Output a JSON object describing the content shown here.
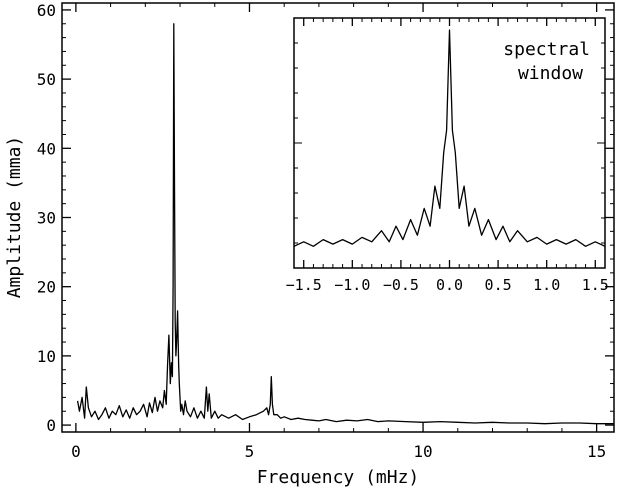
{
  "chart_data": [
    {
      "type": "line",
      "title": "",
      "xlabel": "Frequency (mHz)",
      "ylabel": "Amplitude (mma)",
      "xlim": [
        -0.4,
        15.5
      ],
      "ylim": [
        -1,
        61
      ],
      "xticks": [
        0,
        5,
        10,
        15
      ],
      "yticks": [
        0,
        10,
        20,
        30,
        40,
        50,
        60
      ],
      "grid": false,
      "legend": "none",
      "line_color": "#000000",
      "series": [
        {
          "x": [
            0.05,
            0.1,
            0.18,
            0.25,
            0.3,
            0.36,
            0.45,
            0.55,
            0.65,
            0.75,
            0.85,
            0.95,
            1.05,
            1.15,
            1.25,
            1.35,
            1.45,
            1.55,
            1.65,
            1.75,
            1.85,
            1.95,
            2.05,
            2.12,
            2.2,
            2.28,
            2.35,
            2.42,
            2.5,
            2.55,
            2.6,
            2.64,
            2.68,
            2.72,
            2.75,
            2.78,
            2.8,
            2.82,
            2.84,
            2.86,
            2.88,
            2.9,
            2.93,
            2.96,
            2.98,
            3.0,
            3.02,
            3.05,
            3.1,
            3.15,
            3.2,
            3.3,
            3.4,
            3.5,
            3.6,
            3.7,
            3.76,
            3.8,
            3.84,
            3.9,
            4.0,
            4.1,
            4.2,
            4.4,
            4.6,
            4.8,
            5.0,
            5.2,
            5.4,
            5.5,
            5.55,
            5.6,
            5.63,
            5.66,
            5.7,
            5.8,
            5.9,
            6.0,
            6.2,
            6.4,
            6.6,
            6.8,
            7.0,
            7.2,
            7.5,
            7.8,
            8.1,
            8.4,
            8.7,
            9.0,
            9.5,
            10.0,
            10.5,
            11.0,
            11.5,
            12.0,
            12.5,
            13.0,
            13.5,
            14.0,
            14.5,
            15.0,
            15.5
          ],
          "y": [
            3.5,
            2.0,
            4.0,
            1.0,
            5.5,
            2.5,
            1.2,
            2.0,
            0.8,
            1.5,
            2.5,
            1.0,
            2.0,
            1.5,
            2.8,
            1.2,
            2.2,
            1.0,
            2.5,
            1.5,
            2.0,
            3.0,
            1.2,
            3.2,
            1.8,
            4.0,
            2.0,
            3.5,
            2.5,
            5.0,
            3.0,
            8.5,
            13.0,
            6.0,
            9.0,
            7.0,
            20.0,
            58.0,
            35.0,
            15.0,
            10.0,
            12.0,
            16.5,
            9.0,
            6.0,
            4.0,
            2.0,
            3.0,
            1.5,
            3.5,
            2.0,
            1.2,
            2.5,
            1.0,
            2.0,
            1.0,
            5.5,
            2.0,
            4.5,
            1.0,
            2.0,
            1.0,
            1.5,
            1.0,
            1.5,
            0.8,
            1.2,
            1.5,
            2.0,
            2.5,
            1.5,
            3.0,
            7.0,
            3.0,
            1.5,
            1.5,
            1.0,
            1.2,
            0.8,
            1.0,
            0.8,
            0.7,
            0.6,
            0.8,
            0.5,
            0.7,
            0.6,
            0.8,
            0.5,
            0.6,
            0.5,
            0.4,
            0.5,
            0.4,
            0.3,
            0.4,
            0.3,
            0.3,
            0.2,
            0.3,
            0.3,
            0.2,
            0.2
          ]
        }
      ]
    },
    {
      "type": "line",
      "title": "spectral window",
      "title_lines": [
        "spectral",
        "window"
      ],
      "xlabel": "",
      "ylabel": "",
      "xlim": [
        -1.6,
        1.6
      ],
      "ylim": [
        0,
        1
      ],
      "xticks": [
        -1.5,
        -1.0,
        -0.5,
        0.0,
        0.5,
        1.0,
        1.5
      ],
      "xtick_labels": [
        "−1.5",
        "−1.0",
        "−0.5",
        "0.0",
        "0.5",
        "1.0",
        "1.5"
      ],
      "grid": false,
      "legend": "none",
      "line_color": "#000000",
      "series": [
        {
          "x": [
            -1.6,
            -1.5,
            -1.4,
            -1.3,
            -1.2,
            -1.1,
            -1.0,
            -0.9,
            -0.8,
            -0.7,
            -0.62,
            -0.55,
            -0.48,
            -0.4,
            -0.33,
            -0.26,
            -0.2,
            -0.15,
            -0.1,
            -0.06,
            -0.03,
            0.0,
            0.03,
            0.06,
            0.1,
            0.15,
            0.2,
            0.26,
            0.33,
            0.4,
            0.48,
            0.55,
            0.62,
            0.7,
            0.8,
            0.9,
            1.0,
            1.1,
            1.2,
            1.3,
            1.4,
            1.5,
            1.6
          ],
          "y": [
            0.03,
            0.05,
            0.03,
            0.06,
            0.04,
            0.06,
            0.04,
            0.07,
            0.05,
            0.1,
            0.05,
            0.12,
            0.06,
            0.15,
            0.08,
            0.2,
            0.12,
            0.3,
            0.2,
            0.45,
            0.55,
            1.0,
            0.55,
            0.45,
            0.2,
            0.3,
            0.12,
            0.2,
            0.08,
            0.15,
            0.06,
            0.12,
            0.05,
            0.1,
            0.05,
            0.07,
            0.04,
            0.06,
            0.04,
            0.06,
            0.03,
            0.05,
            0.03
          ]
        }
      ]
    }
  ]
}
